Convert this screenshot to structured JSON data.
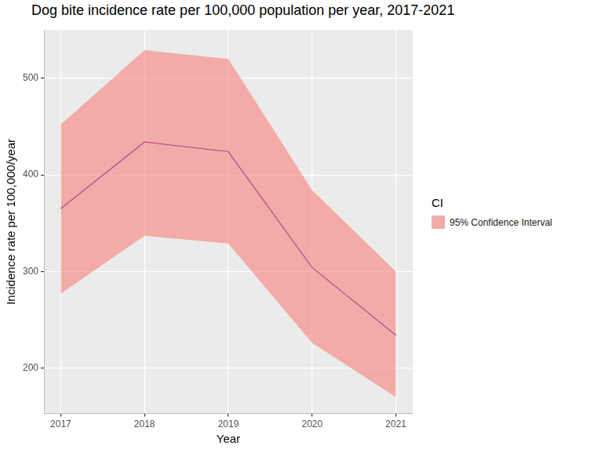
{
  "chart_data": {
    "type": "line",
    "title": "Dog bite incidence rate per 100,000 population per year, 2017-2021",
    "x_label": "Year",
    "y_label": "Incidence rate per 100,000/year",
    "x": [
      2017,
      2018,
      2019,
      2020,
      2021
    ],
    "series": [
      {
        "values": [
          365,
          434,
          424,
          304,
          234
        ],
        "color": "#5a14c8"
      }
    ],
    "band": {
      "name": "95% Confidence Interval",
      "lower": [
        277,
        337,
        329,
        226,
        170
      ],
      "upper": [
        452,
        529,
        520,
        384,
        300
      ],
      "color": "#f8766d"
    },
    "legend_title": "CI",
    "legend": "right",
    "xlim": [
      2016.8,
      2021.2
    ],
    "xticks": [
      2017,
      2018,
      2019,
      2020,
      2021
    ],
    "ylim": [
      153,
      550
    ],
    "yticks": [
      200,
      300,
      400,
      500
    ],
    "grid": true
  }
}
